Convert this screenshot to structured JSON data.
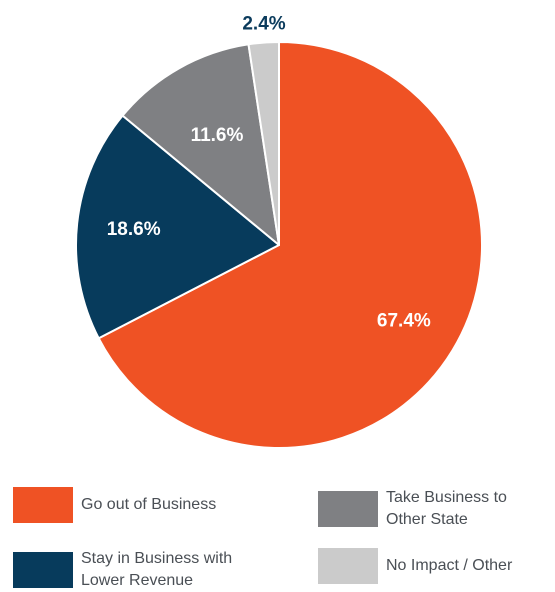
{
  "chart_data": {
    "type": "pie",
    "title": "",
    "slices": [
      {
        "label": "Go out of Business",
        "value": 67.4,
        "display": "67.4%",
        "color": "#ef5224"
      },
      {
        "label": "Stay in Business with Lower Revenue",
        "value": 18.6,
        "display": "18.6%",
        "color": "#073b5c"
      },
      {
        "label": "Take Business to Other State",
        "value": 11.6,
        "display": "11.6%",
        "color": "#7f8083"
      },
      {
        "label": "No Impact / Other",
        "value": 2.4,
        "display": "2.4%",
        "color": "#cbcbcb"
      }
    ],
    "label_colors": [
      "#ffffff",
      "#ffffff",
      "#ffffff",
      "#0b3b5c"
    ],
    "legend_position": "bottom",
    "start_angle": "top",
    "direction": "clockwise"
  },
  "legend": {
    "items": [
      {
        "label": "Go out of Business",
        "color": "#ef5224"
      },
      {
        "label": "Stay in Business with\nLower Revenue",
        "color": "#073b5c"
      },
      {
        "label": "Take Business to\nOther State",
        "color": "#7f8083"
      },
      {
        "label": "No Impact / Other",
        "color": "#cbcbcb"
      }
    ]
  }
}
